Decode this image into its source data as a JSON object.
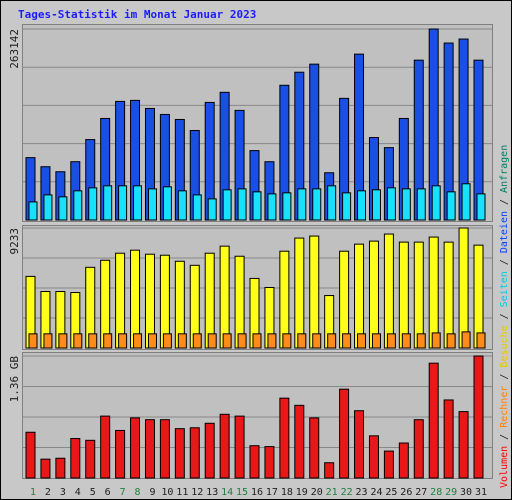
{
  "chart_data": [
    {
      "type": "bar",
      "title": "Tages-Statistik im Monat Januar 2023",
      "ylim": [
        0,
        263142
      ],
      "yticks": [
        263142
      ],
      "grid": true,
      "series": [
        {
          "color": "#1a4fe6",
          "values": [
            85900,
            73400,
            66500,
            80300,
            110800,
            139900,
            163400,
            164800,
            153700,
            145400,
            138500,
            123300,
            162000,
            175900,
            151000,
            95600,
            80300,
            185600,
            203600,
            214700,
            65100,
            167600,
            228500,
            113600,
            99700,
            139900,
            220200,
            263142,
            243800,
            249300,
            220200
          ]
        },
        {
          "color": "#18e0ff",
          "values": [
            24900,
            34600,
            31900,
            40200,
            44300,
            47100,
            47100,
            47100,
            42900,
            45700,
            40200,
            34600,
            29100,
            41600,
            42900,
            38800,
            36000,
            37400,
            42900,
            42900,
            47100,
            37400,
            40200,
            41600,
            44300,
            42900,
            42900,
            47100,
            38800,
            49900,
            36000
          ]
        }
      ]
    },
    {
      "type": "bar",
      "ylim": [
        0,
        9233
      ],
      "yticks": [
        9233
      ],
      "grid": true,
      "series": [
        {
          "color": "#ffff1a",
          "values": [
            5510,
            4346,
            4346,
            4268,
            6207,
            6750,
            7293,
            7526,
            7216,
            7138,
            6673,
            6362,
            7293,
            7836,
            7060,
            5354,
            4655,
            7448,
            8457,
            8612,
            4035,
            7448,
            7991,
            8224,
            8767,
            8147,
            8147,
            8535,
            8147,
            9233,
            7914
          ]
        },
        {
          "color": "#ff8c1a",
          "values": [
            1090,
            1090,
            1090,
            1090,
            1090,
            1090,
            1090,
            1090,
            1090,
            1090,
            1090,
            1090,
            1090,
            1090,
            1090,
            1090,
            1090,
            1090,
            1090,
            1090,
            1090,
            1090,
            1090,
            1090,
            1090,
            1090,
            1090,
            1160,
            1090,
            1240,
            1160
          ]
        }
      ]
    },
    {
      "type": "bar",
      "ylim": [
        0,
        1.36
      ],
      "yticks": [
        {
          "value": 1.36,
          "label": "1.36 GB"
        }
      ],
      "grid": true,
      "categories": [
        "1",
        "2",
        "3",
        "4",
        "5",
        "6",
        "7",
        "8",
        "9",
        "10",
        "11",
        "12",
        "13",
        "14",
        "15",
        "16",
        "17",
        "18",
        "19",
        "20",
        "21",
        "22",
        "23",
        "24",
        "25",
        "26",
        "27",
        "28",
        "29",
        "30",
        "31"
      ],
      "category_colors": [
        "#208040",
        "#202020",
        "#202020",
        "#202020",
        "#202020",
        "#202020",
        "#208040",
        "#208040",
        "#202020",
        "#202020",
        "#202020",
        "#202020",
        "#202020",
        "#208040",
        "#208040",
        "#202020",
        "#202020",
        "#202020",
        "#202020",
        "#202020",
        "#208040",
        "#208040",
        "#202020",
        "#202020",
        "#202020",
        "#202020",
        "#202020",
        "#208040",
        "#208040",
        "#202020",
        "#202020"
      ],
      "series": [
        {
          "color": "#e81818",
          "values": [
            0.51,
            0.21,
            0.22,
            0.44,
            0.42,
            0.69,
            0.53,
            0.67,
            0.65,
            0.65,
            0.55,
            0.56,
            0.61,
            0.71,
            0.69,
            0.36,
            0.35,
            0.89,
            0.81,
            0.67,
            0.17,
            0.99,
            0.75,
            0.47,
            0.3,
            0.39,
            0.65,
            1.28,
            0.87,
            0.74,
            1.36
          ]
        }
      ]
    }
  ],
  "legend": {
    "separator": " / ",
    "entries": [
      {
        "name": "Volumen",
        "color": "#ff0000"
      },
      {
        "name": "Rechner",
        "color": "#ff8000"
      },
      {
        "name": "Besuche",
        "color": "#e8c800"
      },
      {
        "name": "Seiten",
        "color": "#00c8e8"
      },
      {
        "name": "Dateien",
        "color": "#0040ff"
      },
      {
        "name": "Anfragen",
        "color": "#008060"
      }
    ]
  }
}
